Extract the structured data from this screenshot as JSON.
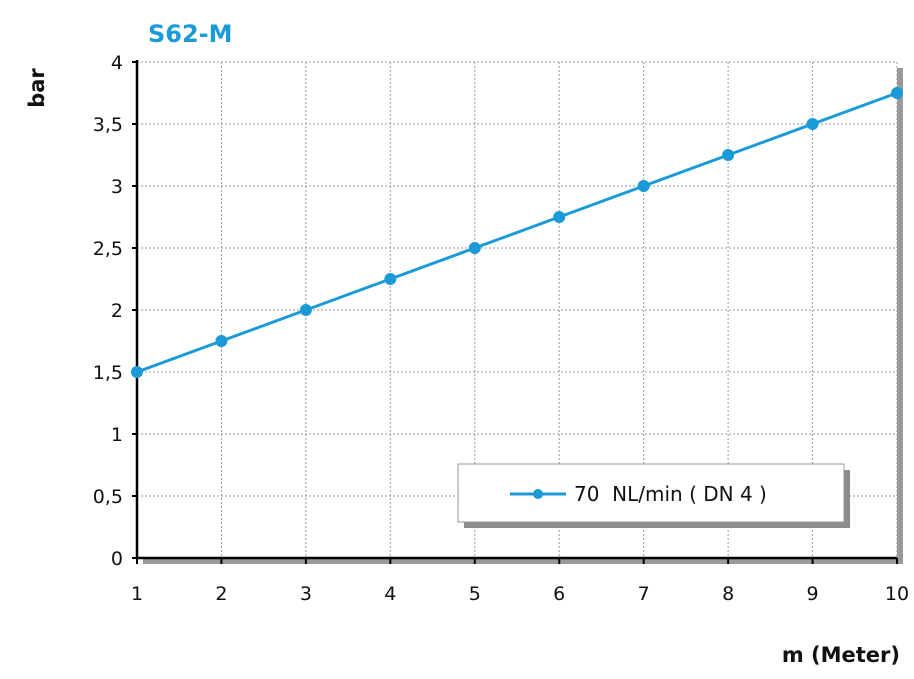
{
  "chart_data": {
    "type": "line",
    "title": "S62-M",
    "xlabel": "m (Meter)",
    "ylabel": "bar",
    "x": [
      1,
      2,
      3,
      4,
      5,
      6,
      7,
      8,
      9,
      10
    ],
    "xlim": [
      1,
      10
    ],
    "ylim": [
      0,
      4
    ],
    "x_ticks": [
      "1",
      "2",
      "3",
      "4",
      "5",
      "6",
      "7",
      "8",
      "9",
      "10"
    ],
    "y_ticks": [
      "0",
      "0,5",
      "1",
      "1,5",
      "2",
      "2,5",
      "3",
      "3,5",
      "4"
    ],
    "series": [
      {
        "name": "70  NL/min ( DN 4 )",
        "values": [
          1.5,
          1.75,
          2.0,
          2.25,
          2.5,
          2.75,
          3.0,
          3.25,
          3.5,
          3.75
        ]
      }
    ],
    "grid": true,
    "legend_position": "bottom-right"
  },
  "colors": {
    "series": "#1a9ad6",
    "title": "#1a9ad6",
    "grid": "#9a9a9a",
    "axis": "#000000"
  }
}
